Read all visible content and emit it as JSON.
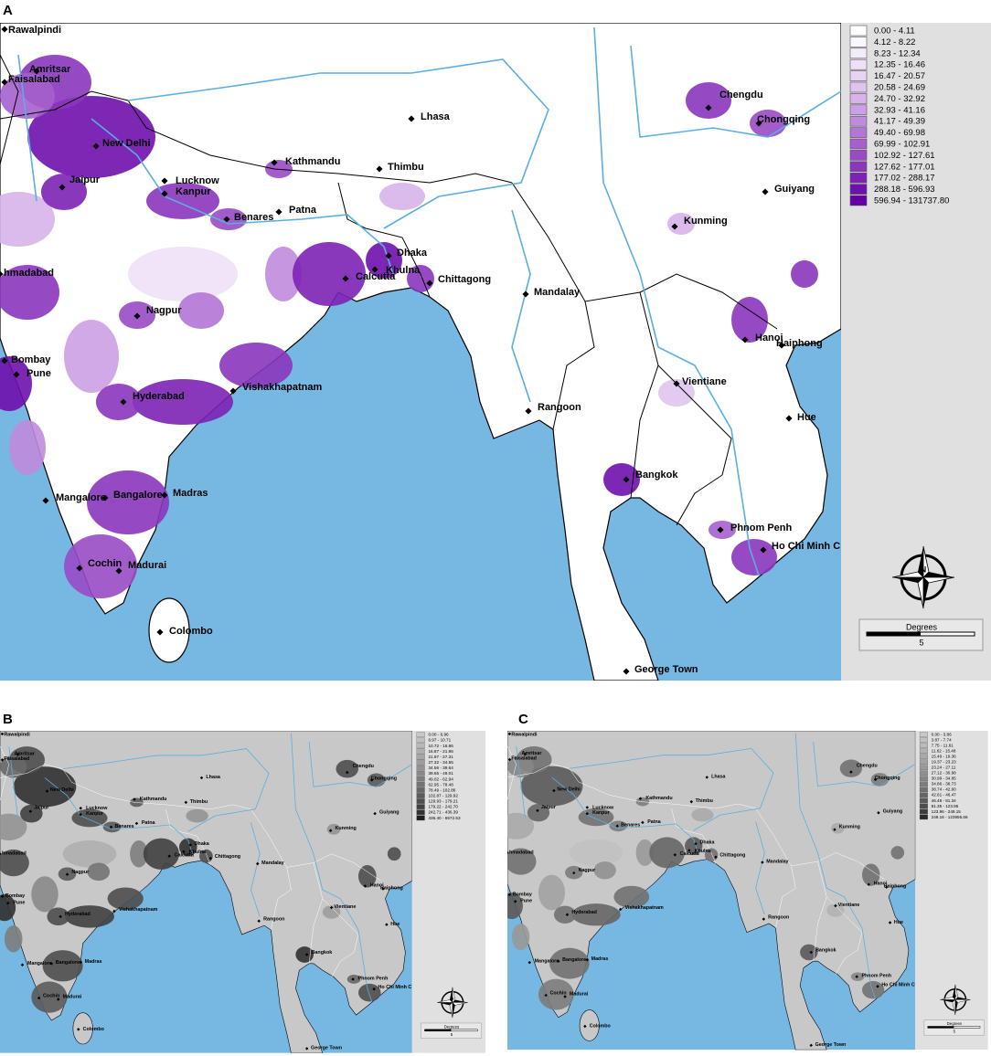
{
  "panels": [
    {
      "label": "A",
      "legend": {
        "labels": [
          "0.00 - 4.11",
          "4.12 - 8.22",
          "8.23 - 12.34",
          "12.35 - 16.46",
          "16.47 - 20.57",
          "20.58 - 24.69",
          "24.70 - 32.92",
          "32.93 - 41.16",
          "41.17 - 49.39",
          "49.40 - 69.98",
          "69.99 - 102.91",
          "102.92 - 127.61",
          "127.62 - 177.01",
          "177.02 - 288.17",
          "288.18 - 596.93",
          "596.94 - 131737.80"
        ],
        "colors": [
          "#ffffff",
          "#fbf6fd",
          "#f5ecfa",
          "#efe0f7",
          "#e8d3f3",
          "#e0c4ef",
          "#d7b3ea",
          "#cca0e4",
          "#c08bdd",
          "#b376d5",
          "#a560cd",
          "#984bc5",
          "#8a36bd",
          "#7c22b5",
          "#6f10ad",
          "#6200a5"
        ]
      },
      "cities": [
        "Rawalpindi",
        "Amritsar",
        "Faisalabad",
        "New Delhi",
        "Jaipur",
        "Lucknow",
        "Kanpur",
        "Benares",
        "Patna",
        "Kathmandu",
        "Thimbu",
        "Lhasa",
        "Chengdu",
        "Chongqing",
        "Guiyang",
        "Kunming",
        "hmadabad",
        "Dhaka",
        "Khulna",
        "Calcutta",
        "Chittagong",
        "Mandalay",
        "Nagpur",
        "Hanoi",
        "Haiphong",
        "Bombay",
        "Pune",
        "Hyderabad",
        "Vishakhapatnam",
        "Vientiane",
        "Hue",
        "Rangoon",
        "Bangkok",
        "Mangalore",
        "Bangalore",
        "Madras",
        "Phnom Penh",
        "Ho Chi Minh C",
        "Cochin",
        "Madurai",
        "Colombo",
        "George Town"
      ],
      "compass": "N",
      "scale_title": "Degrees",
      "scale_value": "5"
    },
    {
      "label": "B",
      "legend": {
        "labels": [
          "0.00 - 6.96",
          "6.97 - 10.71",
          "10.72 - 16.86",
          "16.87 - 21.96",
          "21.97 - 27.31",
          "27.32 - 34.55",
          "34.56 - 39.64",
          "39.65 - 49.01",
          "49.02 - 62.94",
          "62.95 - 78.48",
          "78.49 - 102.86",
          "102.87 - 129.92",
          "129.93 - 179.21",
          "179.22 - 242.70",
          "242.71 - 436.39",
          "436.40 - 6572.53"
        ],
        "colors": [
          "#c8c8c8",
          "#c0c0c0",
          "#b8b8b8",
          "#afafaf",
          "#a6a6a6",
          "#9d9d9d",
          "#939393",
          "#898989",
          "#7e7e7e",
          "#737373",
          "#676767",
          "#5b5b5b",
          "#4e4e4e",
          "#404040",
          "#313131",
          "#1f1f1f"
        ]
      },
      "cities": [
        "Rawalpindi",
        "Amritsar",
        "Faisalabad",
        "New Delhi",
        "Jaipur",
        "Lucknow",
        "Kanpur",
        "Benares",
        "Patna",
        "Kathmandu",
        "Thimbu",
        "Lhasa",
        "Chengdu",
        "Chongqing",
        "Guiyang",
        "Kunming",
        "hmadabad",
        "Dhaka",
        "Khulna",
        "Calcutta",
        "Chittagong",
        "Mandalay",
        "Nagpur",
        "Hanoi",
        "Haiphong",
        "Bombay",
        "Pune",
        "Hyderabad",
        "Vishakhapatnam",
        "Vientiane",
        "Hue",
        "Rangoon",
        "Bangkok",
        "Mangalore",
        "Bangalore",
        "Madras",
        "Phnom Penh",
        "Ho Chi Minh C",
        "Cochin",
        "Madurai",
        "Colombo",
        "George Town"
      ],
      "compass": "N",
      "scale_title": "Degrees",
      "scale_value": "5"
    },
    {
      "label": "C",
      "legend": {
        "labels": [
          "0.00 - 3.86",
          "3.87 - 7.74",
          "7.75 - 11.61",
          "11.62 - 15.48",
          "15.49 - 19.36",
          "19.37 - 23.23",
          "23.24 - 27.11",
          "27.12 - 30.98",
          "30.99 - 34.85",
          "34.86 - 38.73",
          "38.74 - 42.60",
          "42.61 - 46.47",
          "46.48 - 81.34",
          "81.35 - 123.95",
          "123.96 - 249.15",
          "249.16 - 123955.66"
        ],
        "colors": [
          "#c8c8c8",
          "#c1c1c1",
          "#bababa",
          "#b2b2b2",
          "#aaaaaa",
          "#a2a2a2",
          "#999999",
          "#909090",
          "#868686",
          "#7c7c7c",
          "#717171",
          "#666666",
          "#5a5a5a",
          "#4c4c4c",
          "#3d3d3d",
          "#2b2b2b"
        ]
      },
      "cities": [
        "Rawalpindi",
        "Amritsar",
        "Faisalabad",
        "New Delhi",
        "Jaipur",
        "Lucknow",
        "Kanpur",
        "Benares",
        "Patna",
        "Kathmandu",
        "Thimbu",
        "Lhasa",
        "Chengdu",
        "Chongqing",
        "Guiyang",
        "Kunming",
        "hmadabad",
        "Dhaka",
        "Khulna",
        "Calcutta",
        "Chittagong",
        "Mandalay",
        "Nagpur",
        "Hanoi",
        "Haiphong",
        "Bombay",
        "Pune",
        "Hyderabad",
        "Vishakhapatnam",
        "Vientiane",
        "Hue",
        "Rangoon",
        "Bangkok",
        "Mangalore",
        "Bangalore",
        "Madras",
        "Phnom Penh",
        "Ho Chi Minh C",
        "Cochin",
        "Madurai",
        "Colombo",
        "George Town"
      ],
      "compass": "N",
      "scale_title": "Degrees",
      "scale_value": "5"
    }
  ]
}
